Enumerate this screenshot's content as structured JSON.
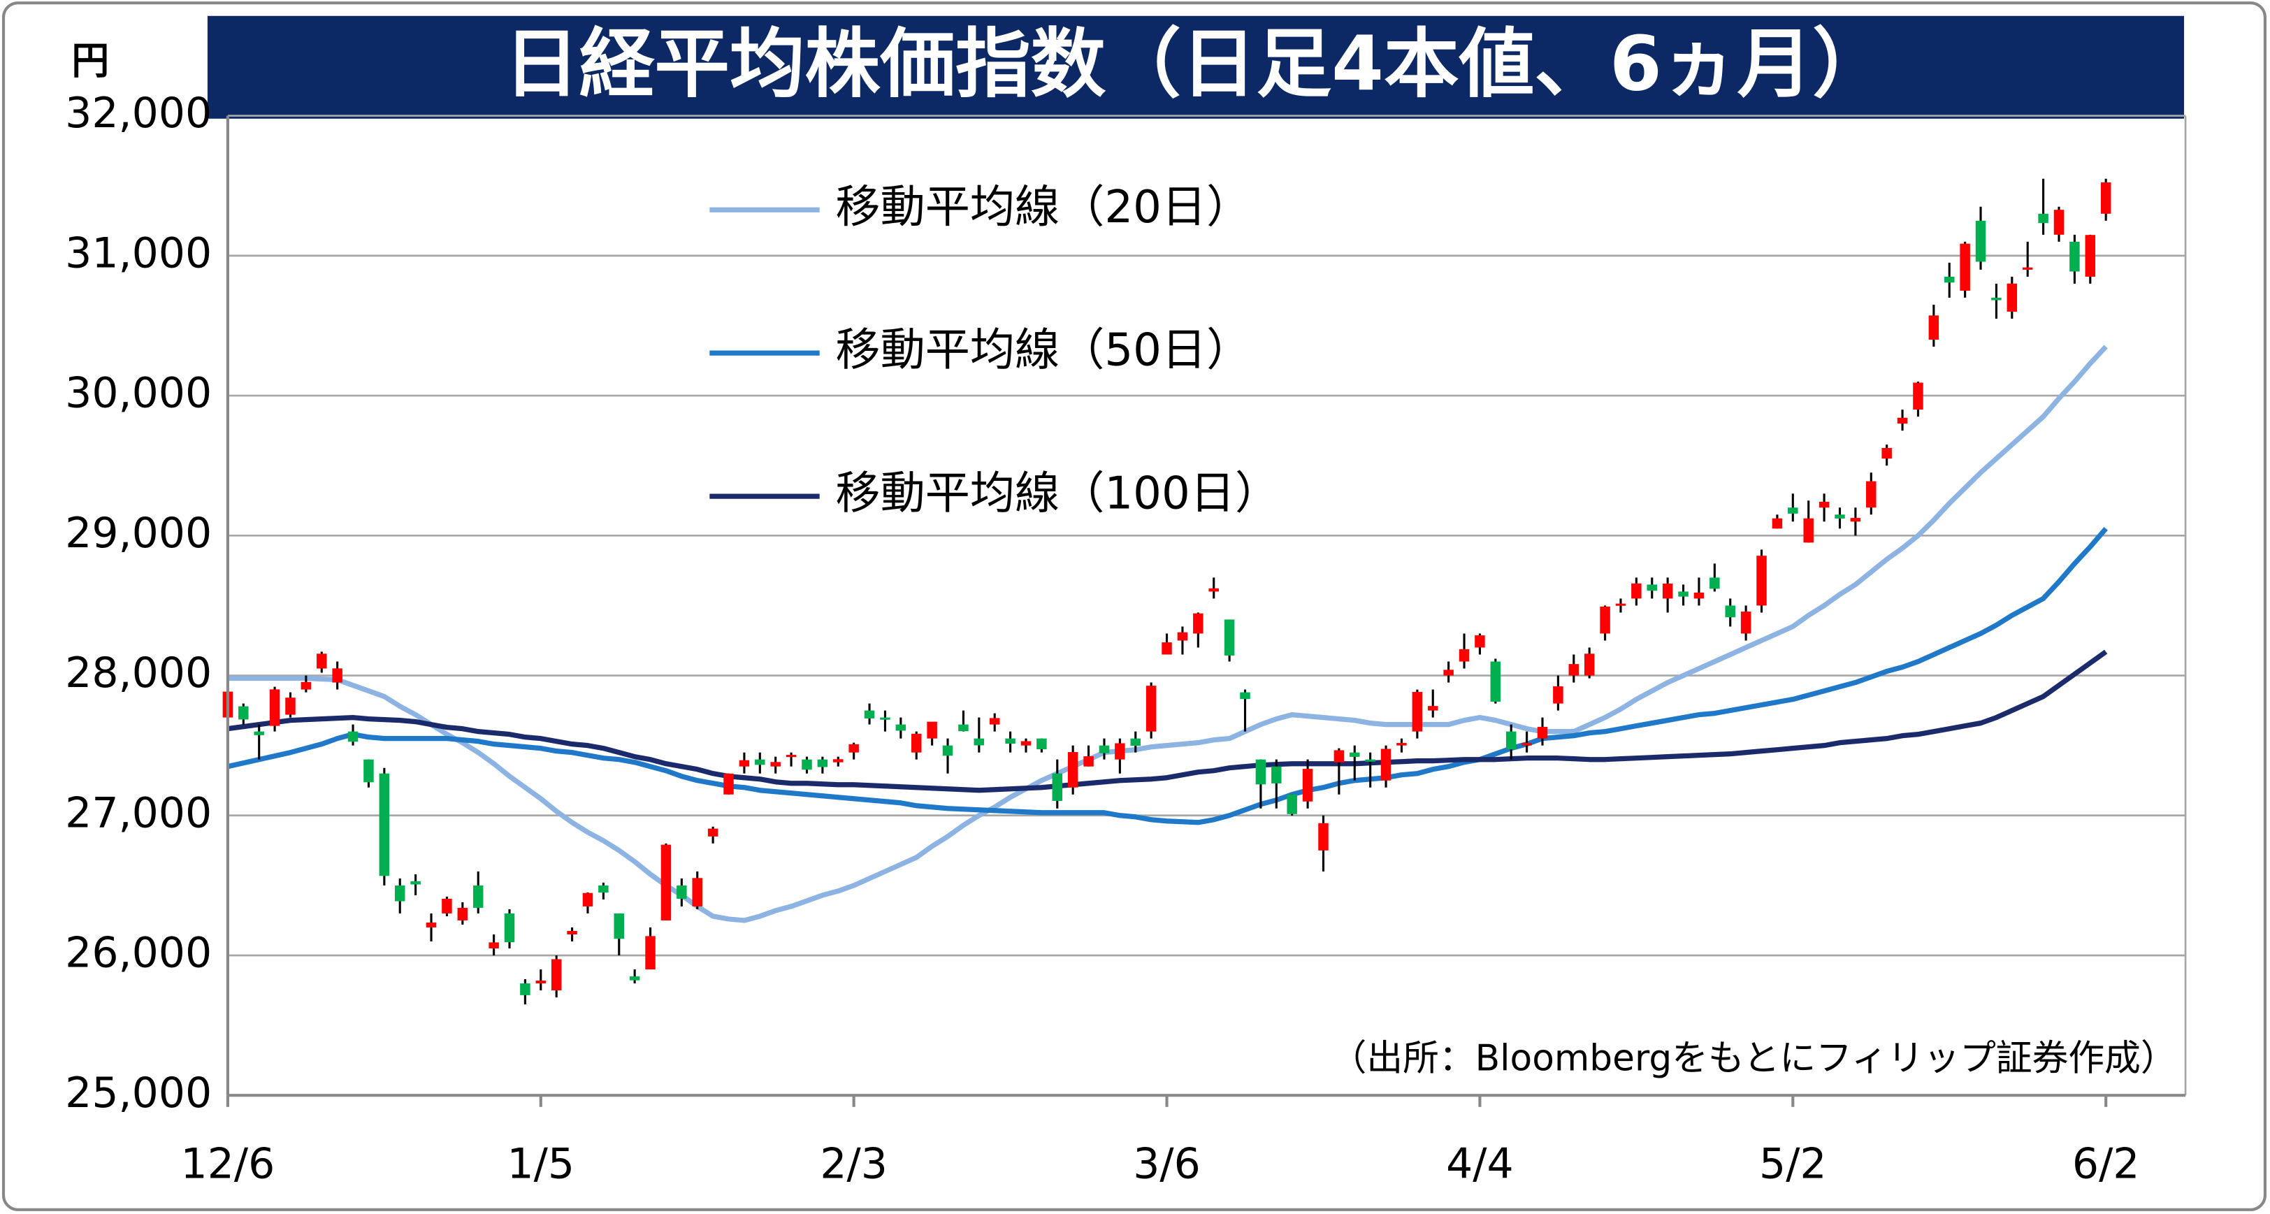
{
  "chart_data": {
    "type": "candlestick",
    "title": "日経平均株価指数（日足4本値、6ヵ月）",
    "y_unit": "円",
    "source": "（出所：Bloombergをもとにフィリップ証券作成）",
    "categories": [
      "12/6",
      null,
      null,
      null,
      null,
      null,
      null,
      null,
      null,
      null,
      null,
      null,
      null,
      null,
      null,
      null,
      null,
      null,
      null,
      null,
      "1/5",
      null,
      null,
      null,
      null,
      null,
      null,
      null,
      null,
      null,
      null,
      null,
      null,
      null,
      null,
      null,
      null,
      null,
      null,
      null,
      "2/3",
      null,
      null,
      null,
      null,
      null,
      null,
      null,
      null,
      null,
      null,
      null,
      null,
      null,
      null,
      null,
      null,
      null,
      null,
      null,
      "3/6",
      null,
      null,
      null,
      null,
      null,
      null,
      null,
      null,
      null,
      null,
      null,
      null,
      null,
      null,
      null,
      null,
      null,
      null,
      null,
      "4/4",
      null,
      null,
      null,
      null,
      null,
      null,
      null,
      null,
      null,
      null,
      null,
      null,
      null,
      null,
      null,
      null,
      null,
      null,
      null,
      "5/2",
      null,
      null,
      null,
      null,
      null,
      null,
      null,
      null,
      null,
      null,
      null,
      null,
      null,
      null,
      null,
      null,
      null,
      null,
      null,
      "6/2"
    ],
    "open": [
      27700,
      27780,
      27600,
      27640,
      27720,
      27900,
      28050,
      27950,
      27600,
      27400,
      27300,
      26500,
      26530,
      26200,
      26300,
      26250,
      26500,
      26050,
      26300,
      25800,
      25800,
      25750,
      26150,
      26350,
      26500,
      26300,
      25850,
      25900,
      26250,
      26500,
      26350,
      26850,
      27150,
      27350,
      27400,
      27350,
      27420,
      27400,
      27400,
      27380,
      27450,
      27750,
      27700,
      27650,
      27450,
      27550,
      27500,
      27650,
      27550,
      27650,
      27550,
      27500,
      27550,
      27300,
      27200,
      27350,
      27500,
      27400,
      27550,
      27600,
      28150,
      28250,
      28300,
      28600,
      28400,
      27880,
      27400,
      27350,
      27150,
      27100,
      26750,
      27380,
      27450,
      27400,
      27250,
      27500,
      27600,
      27750,
      28000,
      28100,
      28200,
      28100,
      27600,
      27500,
      27550,
      27800,
      28000,
      28000,
      28300,
      28500,
      28550,
      28650,
      28550,
      28600,
      28550,
      28700,
      28500,
      28300,
      28500,
      29050,
      29200,
      28950,
      29200,
      29150,
      29100,
      29200,
      29550,
      29800,
      29900,
      30400,
      30850,
      30750,
      31250,
      30700,
      30600,
      30900,
      31300,
      31150,
      31100,
      30850,
      31300
    ],
    "high": [
      27900,
      27800,
      27650,
      27920,
      27880,
      28000,
      28170,
      28100,
      27650,
      27400,
      27340,
      26550,
      26580,
      26300,
      26420,
      26380,
      26600,
      26150,
      26330,
      25830,
      25900,
      26000,
      26200,
      26450,
      26520,
      26300,
      25900,
      26200,
      26800,
      26550,
      26600,
      26920,
      27300,
      27450,
      27450,
      27420,
      27450,
      27420,
      27420,
      27420,
      27520,
      27800,
      27750,
      27700,
      27600,
      27650,
      27550,
      27750,
      27700,
      27730,
      27600,
      27550,
      27550,
      27400,
      27500,
      27500,
      27550,
      27550,
      27600,
      27950,
      28300,
      28350,
      28450,
      28700,
      28400,
      27900,
      27400,
      27400,
      27150,
      27400,
      27000,
      27480,
      27500,
      27450,
      27500,
      27550,
      27900,
      27900,
      28100,
      28300,
      28300,
      28120,
      27650,
      27600,
      27700,
      28000,
      28150,
      28200,
      28500,
      28550,
      28700,
      28700,
      28700,
      28650,
      28700,
      28800,
      28550,
      28500,
      28900,
      29150,
      29300,
      29250,
      29300,
      29200,
      29200,
      29450,
      29650,
      29900,
      30100,
      30650,
      30950,
      31100,
      31350,
      30800,
      30850,
      31100,
      31550,
      31350,
      31150,
      31150,
      31550
    ],
    "low": [
      27650,
      27650,
      27400,
      27600,
      27700,
      27880,
      28020,
      27900,
      27500,
      27200,
      26500,
      26300,
      26430,
      26100,
      26280,
      26220,
      26300,
      26000,
      26050,
      25650,
      25750,
      25700,
      26100,
      26300,
      26400,
      26000,
      25800,
      25900,
      26250,
      26350,
      26330,
      26800,
      27150,
      27300,
      27300,
      27300,
      27350,
      27300,
      27300,
      27350,
      27400,
      27650,
      27600,
      27550,
      27400,
      27500,
      27300,
      27600,
      27450,
      27600,
      27450,
      27450,
      27450,
      27050,
      27150,
      27350,
      27400,
      27300,
      27450,
      27550,
      28150,
      28150,
      28200,
      28550,
      28100,
      27600,
      27050,
      27050,
      27000,
      27050,
      26600,
      27150,
      27250,
      27200,
      27200,
      27450,
      27550,
      27700,
      27950,
      28050,
      28150,
      27800,
      27400,
      27450,
      27500,
      27750,
      27950,
      27980,
      28250,
      28450,
      28500,
      28550,
      28450,
      28500,
      28500,
      28600,
      28350,
      28250,
      28450,
      29050,
      29100,
      28950,
      29100,
      29050,
      29000,
      29150,
      29500,
      29750,
      29850,
      30350,
      30700,
      30700,
      30900,
      30550,
      30550,
      30850,
      31150,
      31100,
      30800,
      30800,
      31250
    ],
    "close": [
      27885,
      27686,
      27574,
      27901,
      27842,
      27954,
      28156,
      28051,
      27527,
      27237,
      26568,
      26387,
      26507,
      26235,
      26405,
      26340,
      26340,
      26093,
      26094,
      25716,
      25820,
      25973,
      26175,
      26446,
      26449,
      26119,
      25822,
      26138,
      26791,
      26405,
      26553,
      26906,
      27299,
      27395,
      27362,
      27382,
      27433,
      27327,
      27346,
      27402,
      27509,
      27693,
      27685,
      27606,
      27584,
      27670,
      27427,
      27602,
      27501,
      27696,
      27513,
      27531,
      27473,
      27104,
      27453,
      27423,
      27445,
      27516,
      27498,
      27927,
      28237,
      28309,
      28444,
      28623,
      28143,
      27832,
      27222,
      27229,
      27010,
      27333,
      26945,
      27466,
      27419,
      27385,
      27476,
      27518,
      27883,
      27782,
      28041,
      28188,
      28287,
      27813,
      27472,
      27518,
      27633,
      27923,
      28082,
      28156,
      28493,
      28514,
      28658,
      28606,
      28657,
      28564,
      28593,
      28620,
      28416,
      28457,
      28856,
      29123,
      29157,
      29123,
      29242,
      29122,
      29126,
      29388,
      29626,
      29842,
      30093,
      30573,
      30808,
      31086,
      30957,
      30682,
      30801,
      30916,
      31233,
      31328,
      30887,
      31148,
      31524
    ],
    "up_color": "#ff0000",
    "down_color": "#00b050",
    "series": [
      {
        "name": "移動平均線（20日）",
        "color": "#8db3e2",
        "values": [
          27980,
          27980,
          27980,
          27980,
          27980,
          27980,
          27975,
          27970,
          27930,
          27890,
          27850,
          27780,
          27720,
          27650,
          27580,
          27520,
          27450,
          27370,
          27280,
          27200,
          27120,
          27030,
          26950,
          26880,
          26820,
          26750,
          26670,
          26580,
          26500,
          26430,
          26350,
          26280,
          26260,
          26250,
          26280,
          26320,
          26350,
          26390,
          26430,
          26460,
          26500,
          26550,
          26600,
          26650,
          26700,
          26780,
          26850,
          26930,
          27000,
          27060,
          27130,
          27190,
          27250,
          27300,
          27350,
          27400,
          27450,
          27460,
          27470,
          27490,
          27500,
          27510,
          27520,
          27540,
          27550,
          27600,
          27650,
          27690,
          27720,
          27710,
          27700,
          27690,
          27680,
          27660,
          27650,
          27650,
          27650,
          27650,
          27650,
          27680,
          27700,
          27680,
          27650,
          27620,
          27600,
          27600,
          27600,
          27650,
          27700,
          27760,
          27830,
          27890,
          27950,
          28000,
          28050,
          28100,
          28150,
          28200,
          28250,
          28300,
          28350,
          28430,
          28500,
          28580,
          28650,
          28740,
          28830,
          28910,
          29000,
          29110,
          29230,
          29340,
          29450,
          29550,
          29650,
          29750,
          29850,
          29980,
          30100,
          30230,
          30350
        ]
      },
      {
        "name": "移動平均線（50日）",
        "color": "#1f78c8",
        "values": [
          27350,
          27375,
          27400,
          27425,
          27450,
          27480,
          27510,
          27550,
          27580,
          27560,
          27550,
          27550,
          27550,
          27550,
          27550,
          27540,
          27530,
          27510,
          27500,
          27490,
          27480,
          27460,
          27450,
          27430,
          27410,
          27400,
          27380,
          27350,
          27320,
          27280,
          27250,
          27230,
          27210,
          27200,
          27180,
          27170,
          27160,
          27150,
          27140,
          27130,
          27120,
          27110,
          27100,
          27090,
          27070,
          27060,
          27050,
          27045,
          27040,
          27035,
          27030,
          27025,
          27020,
          27020,
          27020,
          27020,
          27020,
          27000,
          26990,
          26970,
          26960,
          26955,
          26950,
          26970,
          27000,
          27040,
          27080,
          27110,
          27150,
          27180,
          27200,
          27230,
          27250,
          27260,
          27270,
          27290,
          27300,
          27330,
          27350,
          27380,
          27400,
          27440,
          27480,
          27510,
          27550,
          27560,
          27570,
          27590,
          27600,
          27620,
          27640,
          27660,
          27680,
          27700,
          27720,
          27730,
          27750,
          27770,
          27790,
          27810,
          27830,
          27860,
          27890,
          27920,
          27950,
          27990,
          28030,
          28060,
          28100,
          28150,
          28200,
          28250,
          28300,
          28360,
          28430,
          28490,
          28550,
          28670,
          28800,
          28920,
          29050
        ]
      },
      {
        "name": "移動平均線（100日）",
        "color": "#1b2a6b",
        "values": [
          27620,
          27635,
          27650,
          27665,
          27680,
          27685,
          27690,
          27695,
          27700,
          27690,
          27685,
          27680,
          27670,
          27650,
          27630,
          27620,
          27600,
          27590,
          27580,
          27560,
          27550,
          27530,
          27510,
          27500,
          27480,
          27450,
          27420,
          27400,
          27370,
          27350,
          27330,
          27300,
          27280,
          27270,
          27260,
          27240,
          27230,
          27230,
          27225,
          27220,
          27220,
          27215,
          27210,
          27205,
          27200,
          27195,
          27190,
          27185,
          27180,
          27185,
          27190,
          27195,
          27200,
          27210,
          27220,
          27230,
          27240,
          27250,
          27255,
          27260,
          27270,
          27290,
          27310,
          27320,
          27340,
          27350,
          27360,
          27365,
          27370,
          27370,
          27370,
          27370,
          27370,
          27375,
          27380,
          27385,
          27390,
          27390,
          27395,
          27400,
          27400,
          27400,
          27405,
          27410,
          27410,
          27410,
          27405,
          27400,
          27400,
          27405,
          27410,
          27415,
          27420,
          27425,
          27430,
          27435,
          27440,
          27450,
          27460,
          27470,
          27480,
          27490,
          27500,
          27520,
          27530,
          27540,
          27550,
          27570,
          27580,
          27600,
          27620,
          27640,
          27660,
          27700,
          27750,
          27800,
          27850,
          27930,
          28010,
          28090,
          28170
        ]
      }
    ],
    "ylim": [
      25000,
      32000
    ],
    "yticks": [
      {
        "value": 25000,
        "label": "25,000"
      },
      {
        "value": 26000,
        "label": "26,000"
      },
      {
        "value": 27000,
        "label": "27,000"
      },
      {
        "value": 28000,
        "label": "28,000"
      },
      {
        "value": 29000,
        "label": "29,000"
      },
      {
        "value": 30000,
        "label": "30,000"
      },
      {
        "value": 31000,
        "label": "31,000"
      },
      {
        "value": 32000,
        "label": "32,000"
      }
    ],
    "grid": true
  }
}
